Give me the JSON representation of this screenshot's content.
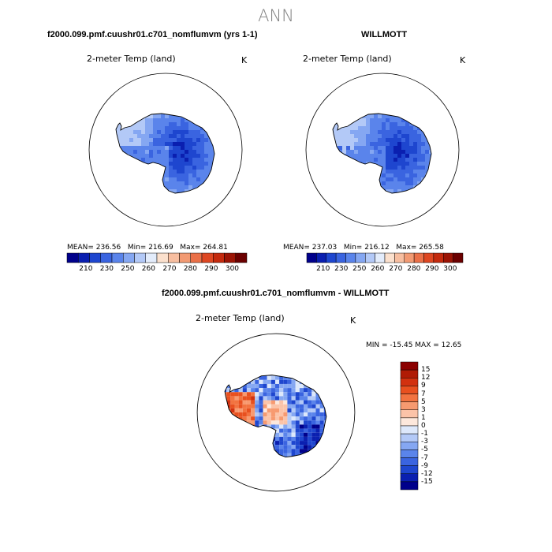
{
  "figure": {
    "title": "ANN"
  },
  "chart_data": [
    {
      "type": "heatmap",
      "title": "f2000.099.pmf.cuushr01.c701_nomflumvm (yrs 1-1)",
      "variable_label": "2-meter Temp (land)",
      "units": "K",
      "stats": {
        "mean_label": "MEAN= 236.56",
        "min_label": "Min= 216.69",
        "max_label": "Max= 264.81"
      },
      "mean": 236.56,
      "min": 216.69,
      "max": 264.81,
      "colorbar": {
        "orientation": "horizontal",
        "tick_labels": [
          "210",
          "230",
          "250",
          "260",
          "270",
          "280",
          "290",
          "300"
        ],
        "colors": [
          "#00008b",
          "#0a1fb0",
          "#1e46cf",
          "#3a64e0",
          "#5a84eb",
          "#85a7f2",
          "#b3c9f7",
          "#e3ecfb",
          "#fbe0cd",
          "#f7bea0",
          "#f29a73",
          "#ea7048",
          "#de4722",
          "#c42a0e",
          "#9c1405",
          "#6b0000"
        ]
      },
      "projection": "south polar stereographic"
    },
    {
      "type": "heatmap",
      "title": "WILLMOTT",
      "variable_label": "2-meter Temp (land)",
      "units": "K",
      "stats": {
        "mean_label": "MEAN= 237.03",
        "min_label": "Min= 216.12",
        "max_label": "Max= 265.58"
      },
      "mean": 237.03,
      "min": 216.12,
      "max": 265.58,
      "colorbar": {
        "orientation": "horizontal",
        "tick_labels": [
          "210",
          "230",
          "250",
          "260",
          "270",
          "280",
          "290",
          "300"
        ]
      },
      "projection": "south polar stereographic"
    },
    {
      "type": "heatmap",
      "title": "f2000.099.pmf.cuushr01.c701_nomflumvm - WILLMOTT",
      "variable_label": "2-meter Temp (land)",
      "units": "K",
      "minmax_label": "MIN = -15.45 MAX =  12.65",
      "min": -15.45,
      "max": 12.65,
      "colorbar": {
        "orientation": "vertical",
        "tick_labels": [
          "15",
          "12",
          "9",
          "7",
          "5",
          "3",
          "1",
          "0",
          "-1",
          "-3",
          "-5",
          "-7",
          "-9",
          "-12",
          "-15"
        ],
        "colors": [
          "#8b0000",
          "#b01b05",
          "#d2310f",
          "#e8501f",
          "#f27340",
          "#f79a70",
          "#fbc3a8",
          "#fde8dc",
          "#dde8fb",
          "#b3c9f7",
          "#85a7f2",
          "#5a84eb",
          "#3a64e0",
          "#1e46cf",
          "#0a1fb0",
          "#00008b"
        ]
      },
      "projection": "south polar stereographic"
    }
  ]
}
